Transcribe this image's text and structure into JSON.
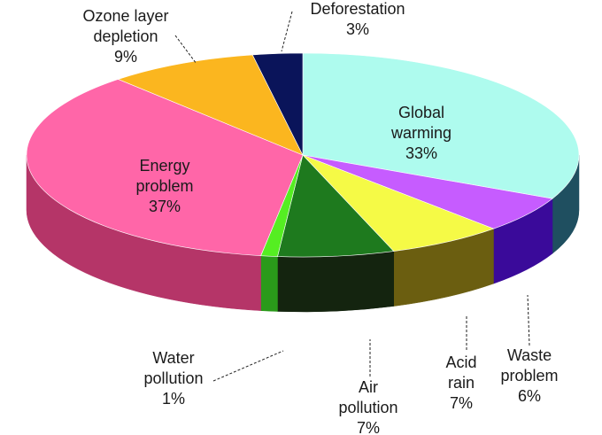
{
  "chart_data": {
    "type": "pie",
    "variant": "3d",
    "slices": [
      {
        "label": [
          "Global",
          "warming"
        ],
        "value": 33,
        "value_label": "33%",
        "color": "#aefbee",
        "side_color": "#1f4f60"
      },
      {
        "label": [
          "Waste",
          "problem"
        ],
        "value": 6,
        "value_label": "6%",
        "color": "#c65cff",
        "side_color": "#3a0a9a"
      },
      {
        "label": [
          "Acid",
          "rain"
        ],
        "value": 7,
        "value_label": "7%",
        "color": "#f5fa46",
        "side_color": "#6b5e10"
      },
      {
        "label": [
          "Air",
          "pollution"
        ],
        "value": 7,
        "value_label": "7%",
        "color": "#1e7a1e",
        "side_color": "#14240f"
      },
      {
        "label": [
          "Water",
          "pollution"
        ],
        "value": 1,
        "value_label": "1%",
        "color": "#55ee22",
        "side_color": "#2a9a1a"
      },
      {
        "label": [
          "Energy",
          "problem"
        ],
        "value": 37,
        "value_label": "37%",
        "color": "#ff66a8",
        "side_color": "#b53568"
      },
      {
        "label": [
          "Ozone layer",
          "depletion"
        ],
        "value": 9,
        "value_label": "9%",
        "color": "#fbb61f",
        "side_color": "#a87512"
      },
      {
        "label": [
          "Deforestation"
        ],
        "value": 3,
        "value_label": "3%",
        "color": "#0a145a",
        "side_color": "#050a30"
      }
    ]
  }
}
